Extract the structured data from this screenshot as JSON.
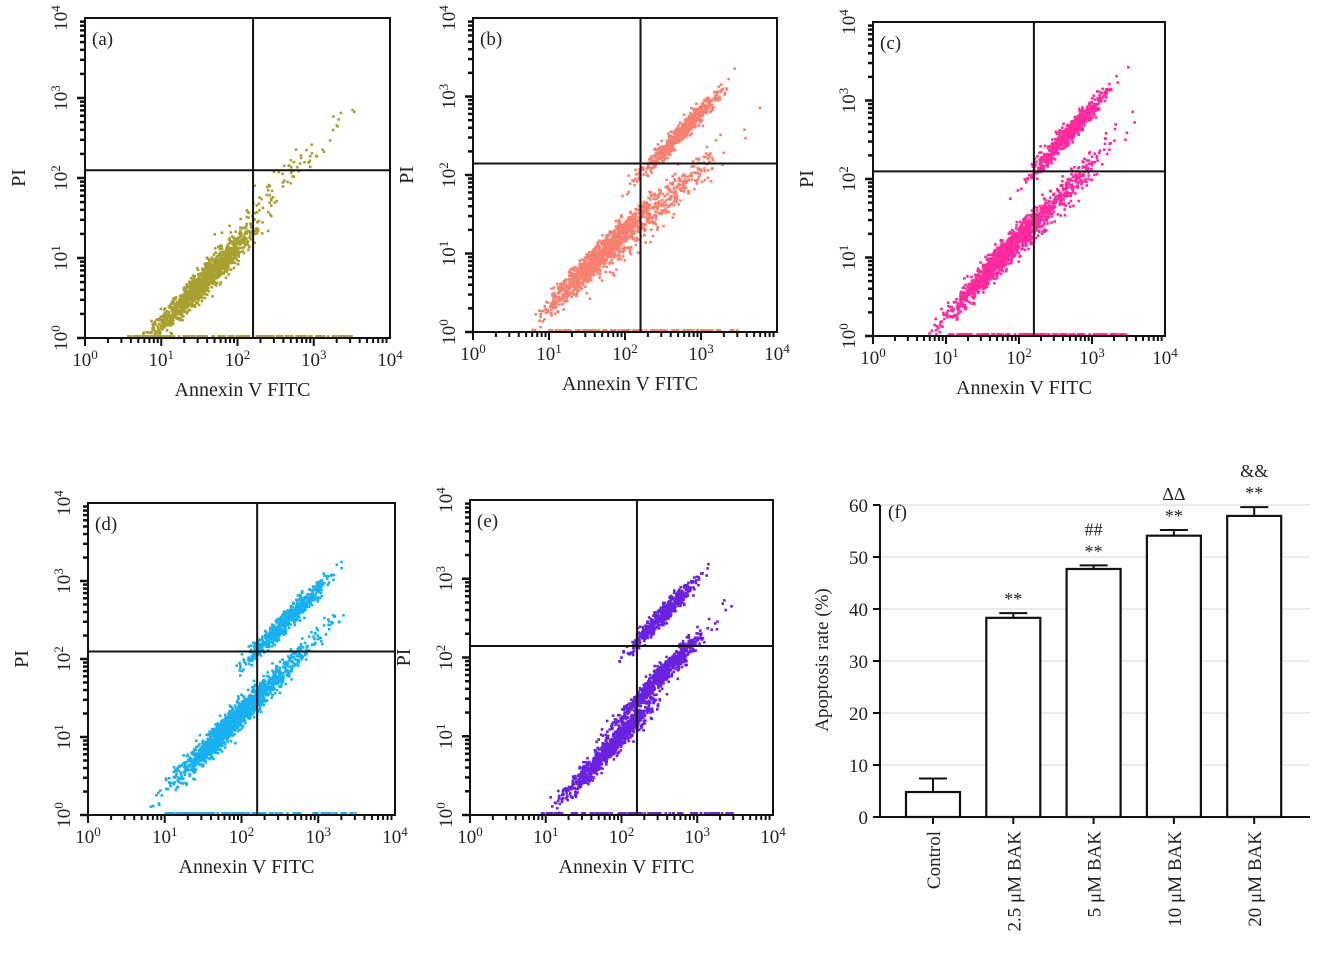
{
  "chart_data": [
    {
      "type": "scatter",
      "panel_label": "(a)",
      "xlabel": "Annexin V FITC",
      "ylabel": "PI",
      "scale": "log",
      "xlim": [
        1,
        10000
      ],
      "ylim": [
        1,
        10000
      ],
      "tick_labels": [
        "10^0",
        "10^1",
        "10^2",
        "10^3",
        "10^4"
      ],
      "quadrant_gate": {
        "x": 160,
        "y": 125
      },
      "color": "#a8a030",
      "populations": [
        {
          "center_log10": [
            1.55,
            0.7
          ],
          "spread_log10": 0.32,
          "events": 1400
        },
        {
          "center_log10": [
            2.65,
            2.0
          ],
          "spread_log10": 0.4,
          "events": 90
        }
      ]
    },
    {
      "type": "scatter",
      "panel_label": "(b)",
      "xlabel": "Annexin V FITC",
      "ylabel": "PI",
      "scale": "log",
      "xlim": [
        1,
        10000
      ],
      "ylim": [
        1,
        10000
      ],
      "tick_labels": [
        "10^0",
        "10^1",
        "10^2",
        "10^3",
        "10^4"
      ],
      "quadrant_gate": {
        "x": 160,
        "y": 140
      },
      "color": "#f88070",
      "populations": [
        {
          "center_log10": [
            1.7,
            1.0
          ],
          "spread_log10": 0.33,
          "events": 1100
        },
        {
          "center_log10": [
            2.75,
            2.55
          ],
          "spread_log10": 0.25,
          "events": 550
        },
        {
          "center_log10": [
            2.5,
            1.6
          ],
          "spread_log10": 0.4,
          "events": 300
        }
      ]
    },
    {
      "type": "scatter",
      "panel_label": "(c)",
      "xlabel": "Annexin V FITC",
      "ylabel": "PI",
      "scale": "log",
      "xlim": [
        1,
        10000
      ],
      "ylim": [
        1,
        10000
      ],
      "tick_labels": [
        "10^0",
        "10^1",
        "10^2",
        "10^3",
        "10^4"
      ],
      "quadrant_gate": {
        "x": 160,
        "y": 125
      },
      "color": "#ff2aa0",
      "populations": [
        {
          "center_log10": [
            1.75,
            1.0
          ],
          "spread_log10": 0.33,
          "events": 1100
        },
        {
          "center_log10": [
            2.7,
            2.6
          ],
          "spread_log10": 0.25,
          "events": 650
        },
        {
          "center_log10": [
            2.5,
            1.7
          ],
          "spread_log10": 0.38,
          "events": 350
        }
      ]
    },
    {
      "type": "scatter",
      "panel_label": "(d)",
      "xlabel": "Annexin V FITC",
      "ylabel": "PI",
      "scale": "log",
      "xlim": [
        1,
        10000
      ],
      "ylim": [
        1,
        10000
      ],
      "tick_labels": [
        "10^0",
        "10^1",
        "10^2",
        "10^3",
        "10^4"
      ],
      "quadrant_gate": {
        "x": 160,
        "y": 125
      },
      "color": "#18b0f0",
      "populations": [
        {
          "center_log10": [
            1.8,
            1.1
          ],
          "spread_log10": 0.32,
          "events": 1100
        },
        {
          "center_log10": [
            2.6,
            2.5
          ],
          "spread_log10": 0.25,
          "events": 600
        },
        {
          "center_log10": [
            2.4,
            1.7
          ],
          "spread_log10": 0.35,
          "events": 400
        }
      ]
    },
    {
      "type": "scatter",
      "panel_label": "(e)",
      "xlabel": "Annexin V FITC",
      "ylabel": "PI",
      "scale": "log",
      "xlim": [
        1,
        10000
      ],
      "ylim": [
        1,
        10000
      ],
      "tick_labels": [
        "10^0",
        "10^1",
        "10^2",
        "10^3",
        "10^4"
      ],
      "quadrant_gate": {
        "x": 160,
        "y": 140
      },
      "color": "#6a22e0",
      "populations": [
        {
          "center_log10": [
            1.85,
            0.85
          ],
          "spread_log10": 0.28,
          "events": 900
        },
        {
          "center_log10": [
            2.5,
            1.75
          ],
          "spread_log10": 0.28,
          "events": 700
        },
        {
          "center_log10": [
            2.55,
            2.55
          ],
          "spread_log10": 0.22,
          "events": 500
        }
      ]
    },
    {
      "type": "bar",
      "panel_label": "(f)",
      "categories": [
        "Control",
        "2.5 μM BAK",
        "5 μM BAK",
        "10 μM BAK",
        "20 μM BAK"
      ],
      "values": [
        4.8,
        38.3,
        47.7,
        54.1,
        57.9
      ],
      "errors": [
        2.6,
        0.9,
        0.7,
        1.1,
        1.7
      ],
      "annotations": [
        [],
        [
          "**"
        ],
        [
          "**",
          "##"
        ],
        [
          "**",
          "ΔΔ"
        ],
        [
          "**",
          "&&"
        ]
      ],
      "ylabel": "Apoptosis rate (%)",
      "xlabel": "",
      "ylim": [
        0,
        60
      ],
      "yticks": [
        0,
        10,
        20,
        30,
        40,
        50,
        60
      ],
      "grid": true
    }
  ]
}
